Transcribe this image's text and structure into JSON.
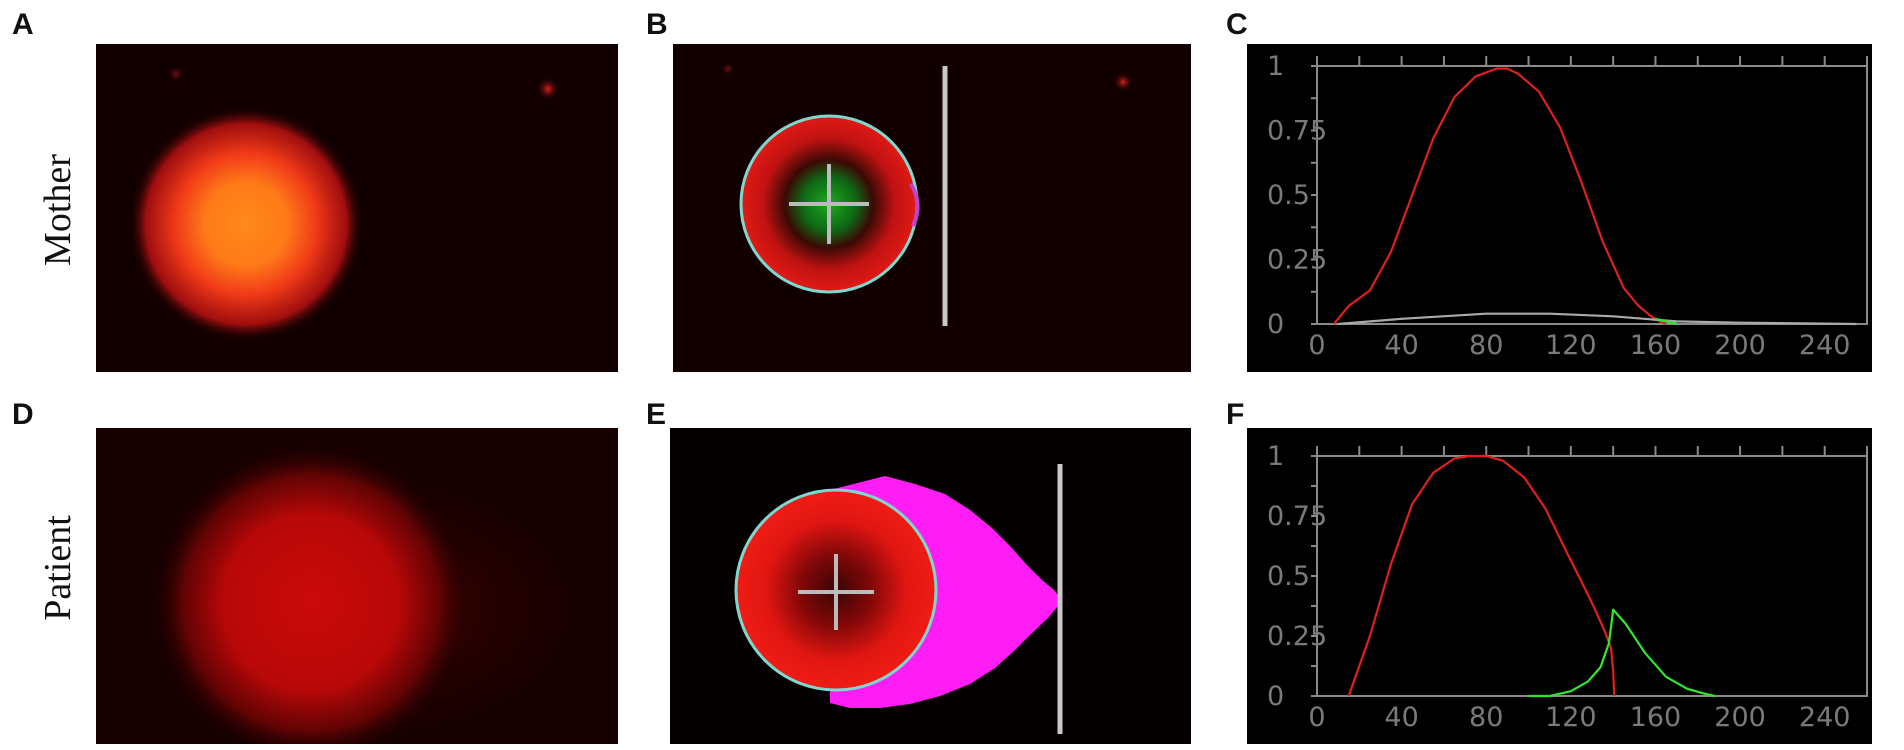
{
  "panels": {
    "a": "A",
    "b": "B",
    "c": "C",
    "d": "D",
    "e": "E",
    "f": "F"
  },
  "rows": {
    "top": "Mother",
    "bottom": "Patient"
  },
  "chart_data": [
    {
      "type": "line",
      "panel": "C",
      "title": "",
      "xlabel": "",
      "ylabel": "",
      "xlim": [
        0,
        260
      ],
      "ylim": [
        0,
        1
      ],
      "xticks": [
        "0",
        "40",
        "80",
        "120",
        "160",
        "200",
        "240"
      ],
      "yticks": [
        "0",
        "0.25",
        "0.5",
        "0.75",
        "1"
      ],
      "grid": false,
      "series": [
        {
          "color": "#e0201c",
          "x": [
            8,
            15,
            25,
            35,
            45,
            55,
            65,
            75,
            85,
            90,
            95,
            105,
            115,
            125,
            135,
            145,
            152,
            158,
            162,
            165
          ],
          "y": [
            0.0,
            0.07,
            0.13,
            0.28,
            0.5,
            0.72,
            0.88,
            0.96,
            0.99,
            0.99,
            0.97,
            0.9,
            0.76,
            0.55,
            0.32,
            0.14,
            0.07,
            0.03,
            0.01,
            0.0
          ]
        },
        {
          "color": "#aaaaaa",
          "x": [
            10,
            40,
            80,
            110,
            140,
            170,
            200,
            255
          ],
          "y": [
            0.0,
            0.02,
            0.04,
            0.04,
            0.03,
            0.01,
            0.005,
            0.0
          ]
        },
        {
          "color": "#2ee82e",
          "x": [
            160,
            165,
            170
          ],
          "y": [
            0.02,
            0.01,
            0.0
          ]
        }
      ]
    },
    {
      "type": "line",
      "panel": "F",
      "title": "",
      "xlabel": "",
      "ylabel": "",
      "xlim": [
        0,
        260
      ],
      "ylim": [
        0,
        1
      ],
      "xticks": [
        "0",
        "40",
        "80",
        "120",
        "160",
        "200",
        "240"
      ],
      "yticks": [
        "0",
        "0.25",
        "0.5",
        "0.75",
        "1"
      ],
      "grid": false,
      "series": [
        {
          "color": "#e0201c",
          "x": [
            15,
            25,
            35,
            45,
            55,
            65,
            72,
            80,
            88,
            98,
            108,
            118,
            126,
            132,
            136,
            139,
            140,
            140.5
          ],
          "y": [
            0.0,
            0.25,
            0.55,
            0.8,
            0.93,
            0.99,
            1.0,
            1.0,
            0.98,
            0.91,
            0.78,
            0.6,
            0.46,
            0.35,
            0.27,
            0.2,
            0.1,
            0.0
          ]
        },
        {
          "color": "#2ee82e",
          "x": [
            100,
            110,
            120,
            128,
            134,
            138,
            140,
            146,
            155,
            165,
            175,
            183,
            188
          ],
          "y": [
            0.0,
            0.0,
            0.02,
            0.06,
            0.12,
            0.22,
            0.36,
            0.3,
            0.18,
            0.08,
            0.03,
            0.01,
            0.0
          ]
        }
      ]
    }
  ]
}
